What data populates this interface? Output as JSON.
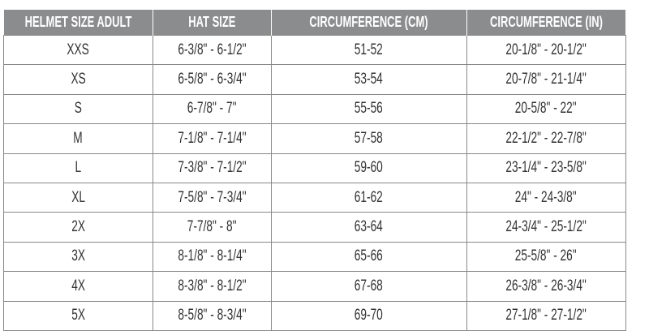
{
  "headers": [
    "HELMET SIZE ADULT",
    "HAT SIZE",
    "CIRCUMFERENCE (CM)",
    "CIRCUMFERENCE (IN)"
  ],
  "rows": [
    [
      "XXS",
      "6-3/8\" - 6-1/2\"",
      "51-52",
      "20-1/8\" - 20-1/2\""
    ],
    [
      "XS",
      "6-5/8\" - 6-3/4\"",
      "53-54",
      "20-7/8\" - 21-1/4\""
    ],
    [
      "S",
      "6-7/8\" - 7\"",
      "55-56",
      "20-5/8\" - 22\""
    ],
    [
      "M",
      "7-1/8\" - 7-1/4\"",
      "57-58",
      "22-1/2\" - 22-7/8\""
    ],
    [
      "L",
      "7-3/8\" - 7-1/2\"",
      "59-60",
      "23-1/4\" - 23-5/8\""
    ],
    [
      "XL",
      "7-5/8\" - 7-3/4\"",
      "61-62",
      "24\" - 24-3/8\""
    ],
    [
      "2X",
      "7-7/8\" - 8\"",
      "63-64",
      "24-3/4\" - 25-1/2\""
    ],
    [
      "3X",
      "8-1/8\" - 8-1/4\"",
      "65-66",
      "25-5/8\" - 26\""
    ],
    [
      "4X",
      "8-3/8\" - 8-1/2\"",
      "67-68",
      "26-3/8\" - 26-3/4\""
    ],
    [
      "5X",
      "8-5/8\" - 8-3/4\"",
      "69-70",
      "27-1/8\" - 27-1/2\""
    ]
  ],
  "colors": {
    "header_bg": "#8b8c8e",
    "header_text": "#ffffff",
    "border": "#888888"
  }
}
